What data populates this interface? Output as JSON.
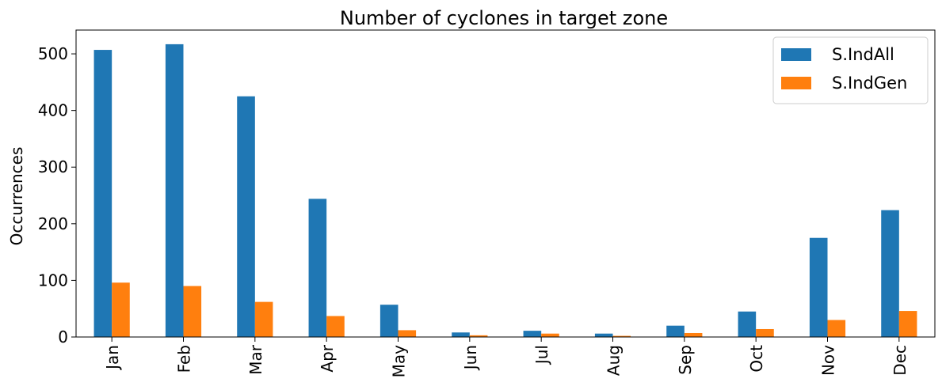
{
  "chart_data": {
    "type": "bar",
    "title": "Number of cyclones in target zone",
    "xlabel": "",
    "ylabel": "Occurrences",
    "categories": [
      "Jan",
      "Feb",
      "Mar",
      "Apr",
      "May",
      "Jun",
      "Jul",
      "Aug",
      "Sep",
      "Oct",
      "Nov",
      "Dec"
    ],
    "series": [
      {
        "name": "S.IndAll",
        "color": "#1f77b4",
        "values": [
          507,
          517,
          425,
          244,
          57,
          8,
          11,
          6,
          20,
          45,
          175,
          224
        ]
      },
      {
        "name": "S.IndGen",
        "color": "#ff7f0e",
        "values": [
          96,
          90,
          62,
          37,
          12,
          3,
          6,
          2,
          7,
          14,
          30,
          46
        ]
      }
    ],
    "ylim": [
      0,
      542
    ],
    "yticks": [
      0,
      100,
      200,
      300,
      400,
      500
    ],
    "grid": false,
    "legend_position": "top-right"
  }
}
